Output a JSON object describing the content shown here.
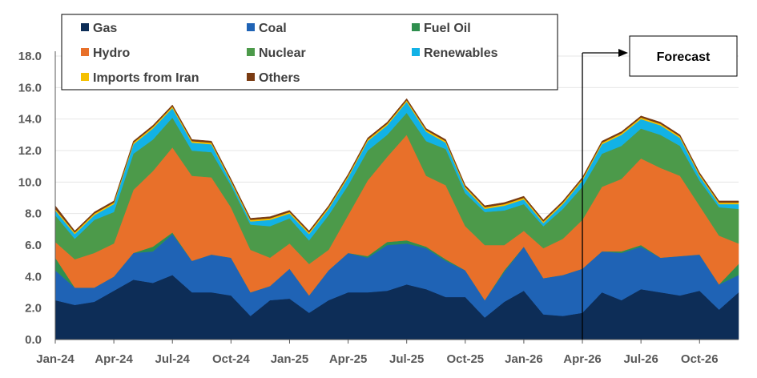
{
  "chart_data": {
    "type": "area",
    "stacked": true,
    "title": "",
    "xlabel": "",
    "ylabel": "",
    "ylim": [
      0,
      18
    ],
    "y_ticks": [
      "0.0",
      "2.0",
      "4.0",
      "6.0",
      "8.0",
      "10.0",
      "12.0",
      "14.0",
      "16.0",
      "18.0"
    ],
    "x_tick_labels": [
      "Jan-24",
      "Apr-24",
      "Jul-24",
      "Oct-24",
      "Jan-25",
      "Apr-25",
      "Jul-25",
      "Oct-25",
      "Jan-26",
      "Apr-26",
      "Jul-26",
      "Oct-26"
    ],
    "x_tick_indices": [
      0,
      3,
      6,
      9,
      12,
      15,
      18,
      21,
      24,
      27,
      30,
      33
    ],
    "categories": [
      "Jan-24",
      "Feb-24",
      "Mar-24",
      "Apr-24",
      "May-24",
      "Jun-24",
      "Jul-24",
      "Aug-24",
      "Sep-24",
      "Oct-24",
      "Nov-24",
      "Dec-24",
      "Jan-25",
      "Feb-25",
      "Mar-25",
      "Apr-25",
      "May-25",
      "Jun-25",
      "Jul-25",
      "Aug-25",
      "Sep-25",
      "Oct-25",
      "Nov-25",
      "Dec-25",
      "Jan-26",
      "Feb-26",
      "Mar-26",
      "Apr-26",
      "May-26",
      "Jun-26",
      "Jul-26",
      "Aug-26",
      "Sep-26",
      "Oct-26",
      "Nov-26",
      "Dec-26"
    ],
    "series": [
      {
        "name": "Gas",
        "color": "#0d2d57",
        "values": [
          2.5,
          2.2,
          2.4,
          3.1,
          3.8,
          3.6,
          4.1,
          3.0,
          3.0,
          2.8,
          1.5,
          2.5,
          2.6,
          1.7,
          2.5,
          3.0,
          3.0,
          3.1,
          3.5,
          3.2,
          2.7,
          2.7,
          1.4,
          2.4,
          3.1,
          1.6,
          1.5,
          1.7,
          3.0,
          2.5,
          3.2,
          3.0,
          2.8,
          3.1,
          1.9,
          3.0
        ]
      },
      {
        "name": "Coal",
        "color": "#1f63b5",
        "values": [
          1.9,
          1.1,
          0.9,
          0.9,
          1.7,
          2.0,
          2.6,
          2.0,
          2.4,
          2.4,
          1.5,
          0.9,
          1.9,
          1.1,
          1.9,
          2.5,
          2.2,
          2.9,
          2.6,
          2.6,
          2.3,
          1.7,
          1.1,
          1.9,
          2.8,
          2.3,
          2.6,
          2.8,
          2.6,
          3.0,
          2.7,
          2.2,
          2.5,
          2.3,
          1.6,
          1.1
        ]
      },
      {
        "name": "Fuel Oil",
        "color": "#2f8f4e",
        "values": [
          0.8,
          0.0,
          0.0,
          0.0,
          0.0,
          0.3,
          0.1,
          0.0,
          0.0,
          0.0,
          0.0,
          0.0,
          0.0,
          0.0,
          0.0,
          0.0,
          0.1,
          0.2,
          0.2,
          0.1,
          0.1,
          0.0,
          0.0,
          0.1,
          0.0,
          0.0,
          0.0,
          0.0,
          0.0,
          0.1,
          0.1,
          0.0,
          0.0,
          0.0,
          0.0,
          0.7
        ]
      },
      {
        "name": "Hydro",
        "color": "#e8702a",
        "values": [
          1.0,
          1.8,
          2.2,
          2.1,
          4.0,
          4.8,
          5.4,
          5.4,
          4.9,
          3.2,
          2.7,
          1.8,
          1.6,
          2.0,
          1.3,
          2.4,
          4.8,
          5.4,
          6.7,
          4.5,
          4.7,
          2.8,
          3.5,
          1.6,
          1.0,
          1.9,
          2.3,
          3.1,
          4.1,
          4.6,
          5.5,
          5.7,
          5.1,
          3.1,
          3.1,
          1.3
        ]
      },
      {
        "name": "Nuclear",
        "color": "#4c9a4a",
        "values": [
          1.7,
          1.3,
          2.1,
          2.0,
          2.3,
          2.0,
          1.9,
          1.6,
          1.6,
          1.4,
          1.6,
          2.0,
          1.6,
          1.5,
          2.2,
          1.9,
          1.9,
          1.4,
          1.4,
          2.2,
          2.3,
          2.1,
          2.1,
          2.2,
          1.7,
          1.4,
          1.9,
          2.1,
          2.1,
          2.1,
          1.9,
          2.1,
          1.9,
          1.6,
          1.8,
          2.2
        ]
      },
      {
        "name": "Renewables",
        "color": "#12b2e6",
        "values": [
          0.3,
          0.3,
          0.3,
          0.5,
          0.6,
          0.7,
          0.6,
          0.5,
          0.5,
          0.2,
          0.2,
          0.4,
          0.3,
          0.4,
          0.4,
          0.5,
          0.6,
          0.6,
          0.7,
          0.6,
          0.4,
          0.3,
          0.2,
          0.3,
          0.3,
          0.2,
          0.3,
          0.4,
          0.6,
          0.7,
          0.6,
          0.6,
          0.5,
          0.3,
          0.2,
          0.3
        ]
      },
      {
        "name": "Imports from Iran",
        "color": "#f5c000",
        "values": [
          0.1,
          0.1,
          0.1,
          0.1,
          0.1,
          0.1,
          0.1,
          0.1,
          0.1,
          0.1,
          0.1,
          0.1,
          0.1,
          0.1,
          0.1,
          0.1,
          0.1,
          0.1,
          0.1,
          0.1,
          0.1,
          0.1,
          0.1,
          0.1,
          0.1,
          0.1,
          0.1,
          0.1,
          0.1,
          0.1,
          0.1,
          0.1,
          0.1,
          0.1,
          0.1,
          0.1
        ]
      },
      {
        "name": "Others",
        "color": "#7a3b12",
        "values": [
          0.2,
          0.1,
          0.1,
          0.1,
          0.1,
          0.1,
          0.1,
          0.1,
          0.1,
          0.1,
          0.1,
          0.1,
          0.1,
          0.1,
          0.1,
          0.1,
          0.1,
          0.1,
          0.1,
          0.1,
          0.1,
          0.1,
          0.1,
          0.1,
          0.1,
          0.1,
          0.1,
          0.1,
          0.1,
          0.1,
          0.1,
          0.1,
          0.1,
          0.1,
          0.1,
          0.1
        ]
      }
    ],
    "legend": {
      "placement": "top-left",
      "columns": 3
    },
    "forecast": {
      "label": "Forecast",
      "start": "Apr-26"
    }
  }
}
